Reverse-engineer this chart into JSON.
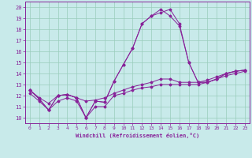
{
  "xlabel": "Windchill (Refroidissement éolien,°C)",
  "xlim": [
    -0.5,
    23.5
  ],
  "ylim": [
    9.5,
    20.5
  ],
  "xticks": [
    0,
    1,
    2,
    3,
    4,
    5,
    6,
    7,
    8,
    9,
    10,
    11,
    12,
    13,
    14,
    15,
    16,
    17,
    18,
    19,
    20,
    21,
    22,
    23
  ],
  "yticks": [
    10,
    11,
    12,
    13,
    14,
    15,
    16,
    17,
    18,
    19,
    20
  ],
  "bg_color": "#c8eaea",
  "line_color": "#882299",
  "grid_color": "#99ccbb",
  "lines": [
    {
      "x": [
        0,
        1,
        2,
        3,
        4,
        5,
        6,
        7,
        8,
        9,
        10,
        11,
        12,
        13,
        14,
        15,
        16,
        17,
        18,
        19,
        20,
        21,
        22,
        23
      ],
      "y": [
        12.5,
        11.7,
        10.7,
        12.0,
        12.1,
        11.8,
        10.0,
        11.5,
        11.4,
        13.3,
        14.8,
        16.3,
        18.5,
        19.2,
        19.5,
        19.8,
        18.5,
        15.0,
        13.2,
        13.2,
        13.5,
        14.0,
        14.2,
        14.3
      ]
    },
    {
      "x": [
        0,
        1,
        2,
        3,
        4,
        5,
        6,
        7,
        8,
        9,
        10,
        11,
        12,
        13,
        14,
        15,
        16,
        17,
        18,
        19,
        20,
        21,
        22,
        23
      ],
      "y": [
        12.5,
        11.7,
        10.7,
        12.0,
        12.1,
        11.8,
        10.0,
        11.5,
        11.4,
        13.3,
        14.8,
        16.3,
        18.5,
        19.2,
        19.8,
        19.2,
        18.3,
        15.0,
        13.2,
        13.2,
        13.5,
        14.0,
        14.2,
        14.3
      ]
    },
    {
      "x": [
        0,
        1,
        2,
        3,
        4,
        5,
        6,
        7,
        8,
        9,
        10,
        11,
        12,
        13,
        14,
        15,
        16,
        17,
        18,
        19,
        20,
        21,
        22,
        23
      ],
      "y": [
        12.5,
        11.8,
        11.3,
        12.0,
        12.1,
        11.8,
        11.5,
        11.6,
        11.8,
        12.2,
        12.5,
        12.8,
        13.0,
        13.2,
        13.5,
        13.5,
        13.2,
        13.2,
        13.2,
        13.4,
        13.7,
        14.0,
        14.2,
        14.3
      ]
    },
    {
      "x": [
        0,
        1,
        2,
        3,
        4,
        5,
        6,
        7,
        8,
        9,
        10,
        11,
        12,
        13,
        14,
        15,
        16,
        17,
        18,
        19,
        20,
        21,
        22,
        23
      ],
      "y": [
        12.2,
        11.5,
        10.7,
        11.5,
        11.8,
        11.5,
        10.0,
        11.0,
        11.0,
        12.0,
        12.2,
        12.5,
        12.7,
        12.8,
        13.0,
        13.0,
        13.0,
        13.0,
        13.0,
        13.2,
        13.5,
        13.8,
        14.0,
        14.2
      ]
    }
  ]
}
